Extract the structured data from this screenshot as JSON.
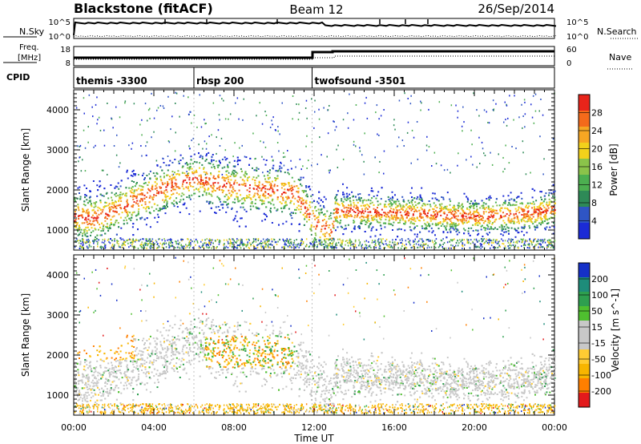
{
  "header": {
    "station": "Blackstone (fitACF)",
    "beam": "Beam 12",
    "date": "26/Sep/2014"
  },
  "top_panels": {
    "nsky_label": "N.Sky",
    "nsky_top_tick": "10^5",
    "nsky_bottom_tick": "10^0",
    "nsearch_label": "N.Search",
    "nsearch_top_tick": "10^5",
    "nsearch_bottom_tick": "10^0",
    "freq_label_1": "Freq.",
    "freq_label_2": "[MHz]",
    "freq_top_tick": "18",
    "freq_bottom_tick": "8",
    "nave_label": "Nave",
    "nave_top_tick": "60",
    "nave_bottom_tick": "0",
    "cpid_label": "CPID",
    "cpid_segments": [
      {
        "label": "themis -3300",
        "start_hour": 0.0
      },
      {
        "label": "rbsp 200",
        "start_hour": 6.0
      },
      {
        "label": "twofsound -3501",
        "start_hour": 11.9
      }
    ]
  },
  "colors": {
    "power": [
      "#1b2bd6",
      "#2f55c4",
      "#2e8a57",
      "#4caf50",
      "#8bc34a",
      "#f2d11b",
      "#f6a623",
      "#f46a1b",
      "#e8241a"
    ],
    "velocity": [
      "#e31a1c",
      "#ff7f00",
      "#f7b500",
      "#ffcc33",
      "#c8c8c8",
      "#c8c8c8",
      "#4fbf2f",
      "#2e9f4f",
      "#1e8c7a",
      "#1530c8"
    ]
  },
  "chart_data": [
    {
      "type": "heatmap",
      "title": "Power",
      "ylabel": "Slant Range [km]",
      "xlabel": "",
      "xlim_hours": [
        0,
        24
      ],
      "ylim_km": [
        500,
        4500
      ],
      "y_ticks": [
        "1000",
        "2000",
        "3000",
        "4000"
      ],
      "x_ticks": [
        "00:00",
        "04:00",
        "08:00",
        "12:00",
        "16:00",
        "20:00",
        "00:00"
      ],
      "colorbar_label": "Power [dB]",
      "colorbar_ticks": [
        "4",
        "8",
        "12",
        "16",
        "20",
        "24",
        "28"
      ],
      "colorbar_range": [
        0,
        30
      ],
      "scatter_band_center_km": [
        [
          0.0,
          1350
        ],
        [
          1.0,
          1300
        ],
        [
          2.0,
          1500
        ],
        [
          3.0,
          1750
        ],
        [
          4.0,
          1950
        ],
        [
          5.0,
          2150
        ],
        [
          6.0,
          2300
        ],
        [
          7.0,
          2200
        ],
        [
          8.0,
          2100
        ],
        [
          9.0,
          2050
        ],
        [
          10.0,
          2000
        ],
        [
          11.0,
          1950
        ],
        [
          12.0,
          1200
        ],
        [
          12.9,
          950
        ],
        [
          13.0,
          1500
        ],
        [
          16.0,
          1450
        ],
        [
          20.0,
          1350
        ],
        [
          23.0,
          1450
        ],
        [
          24.0,
          1550
        ]
      ]
    },
    {
      "type": "heatmap",
      "title": "Velocity",
      "ylabel": "Slant Range [km]",
      "xlabel": "Time UT",
      "xlim_hours": [
        0,
        24
      ],
      "ylim_km": [
        500,
        4500
      ],
      "y_ticks": [
        "1000",
        "2000",
        "3000",
        "4000"
      ],
      "x_ticks": [
        "00:00",
        "04:00",
        "08:00",
        "12:00",
        "16:00",
        "20:00",
        "00:00"
      ],
      "colorbar_label": "Velocity [m s^-1]",
      "colorbar_ticks": [
        "200",
        "100",
        "50",
        "15",
        "-15",
        "-50",
        "-100",
        "-200"
      ],
      "colorbar_range": [
        -250,
        250
      ]
    }
  ]
}
